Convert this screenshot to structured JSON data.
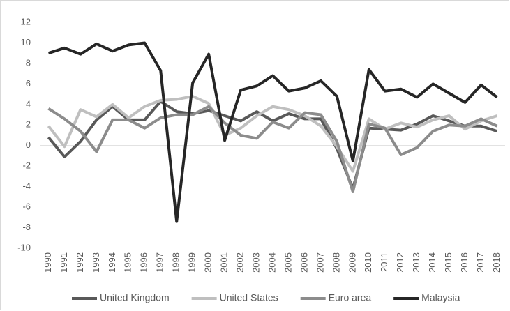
{
  "chart_data": {
    "type": "line",
    "categories": [
      "1990",
      "1991",
      "1992",
      "1993",
      "1994",
      "1995",
      "1996",
      "1997",
      "1998",
      "1999",
      "2000",
      "2001",
      "2002",
      "2003",
      "2004",
      "2005",
      "2006",
      "2007",
      "2008",
      "2009",
      "2010",
      "2011",
      "2012",
      "2013",
      "2014",
      "2015",
      "2016",
      "2017",
      "2018"
    ],
    "series": [
      {
        "name": "United Kingdom",
        "color": "#595959",
        "values": [
          0.8,
          -1.1,
          0.4,
          2.5,
          3.8,
          2.5,
          2.5,
          4.3,
          3.3,
          3.1,
          3.4,
          2.9,
          2.4,
          3.3,
          2.4,
          3.1,
          2.6,
          2.6,
          -0.3,
          -4.2,
          1.7,
          1.6,
          1.5,
          2.1,
          2.9,
          2.4,
          1.9,
          1.9,
          1.4
        ]
      },
      {
        "name": "United States",
        "color": "#bfbfbf",
        "values": [
          1.9,
          -0.1,
          3.5,
          2.8,
          4.0,
          2.7,
          3.8,
          4.4,
          4.5,
          4.8,
          4.1,
          1.0,
          1.7,
          2.9,
          3.8,
          3.5,
          2.9,
          1.9,
          -0.1,
          -2.5,
          2.6,
          1.6,
          2.2,
          1.8,
          2.5,
          2.9,
          1.6,
          2.4,
          2.9
        ]
      },
      {
        "name": "Euro area",
        "color": "#8c8c8c",
        "values": [
          3.6,
          2.6,
          1.4,
          -0.6,
          2.5,
          2.5,
          1.7,
          2.7,
          3.0,
          3.0,
          3.8,
          2.2,
          1.0,
          0.7,
          2.3,
          1.7,
          3.2,
          3.0,
          0.4,
          -4.5,
          2.1,
          1.7,
          -0.9,
          -0.2,
          1.4,
          2.0,
          1.9,
          2.6,
          1.9
        ]
      },
      {
        "name": "Malaysia",
        "color": "#262626",
        "values": [
          9.0,
          9.5,
          8.9,
          9.9,
          9.2,
          9.8,
          10.0,
          7.3,
          -7.4,
          6.1,
          8.9,
          0.5,
          5.4,
          5.8,
          6.8,
          5.3,
          5.6,
          6.3,
          4.8,
          -1.5,
          7.4,
          5.3,
          5.5,
          4.7,
          6.0,
          5.1,
          4.2,
          5.9,
          4.7
        ]
      }
    ],
    "ylim": [
      -10,
      12
    ],
    "yticks": [
      -10,
      -8,
      -6,
      -4,
      -2,
      0,
      2,
      4,
      6,
      8,
      10,
      12
    ],
    "legend": "bottom"
  }
}
